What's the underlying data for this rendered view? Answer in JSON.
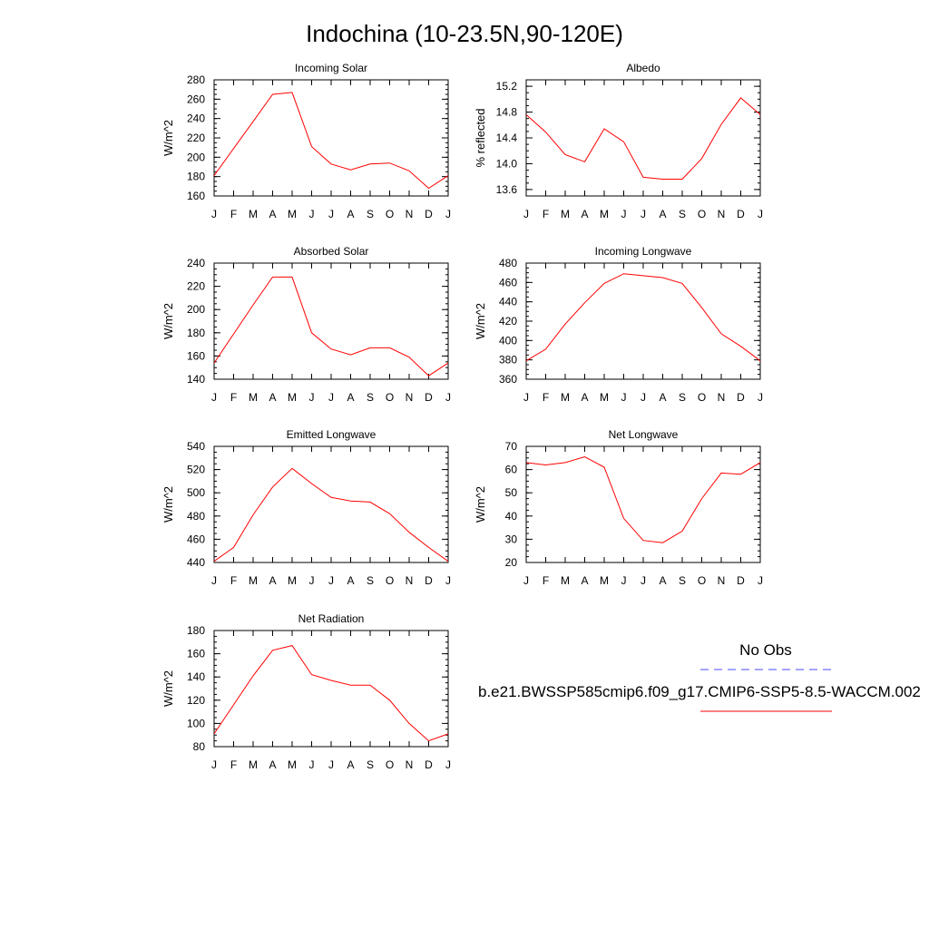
{
  "figure": {
    "title": "Indochina (10-23.5N,90-120E)",
    "month_labels": [
      "J",
      "F",
      "M",
      "A",
      "M",
      "J",
      "J",
      "A",
      "S",
      "O",
      "N",
      "D",
      "J"
    ]
  },
  "legend": {
    "obs_label": "No Obs",
    "obs_color": "#4a4aff",
    "model_label": "b.e21.BWSSP585cmip6.f09_g17.CMIP6-SSP5-8.5-WACCM.002",
    "model_color": "#ff0000"
  },
  "chart_data": [
    {
      "type": "line",
      "title": "Incoming Solar",
      "ylabel": "W/m^2",
      "ylim": [
        160,
        280
      ],
      "yticks": [
        160,
        180,
        200,
        220,
        240,
        260,
        280
      ],
      "x": [
        "J",
        "F",
        "M",
        "A",
        "M",
        "J",
        "J",
        "A",
        "S",
        "O",
        "N",
        "D",
        "J"
      ],
      "series": [
        {
          "values": [
            181,
            209,
            237,
            265,
            267,
            211,
            193,
            187,
            193,
            194,
            186,
            168,
            181
          ]
        }
      ]
    },
    {
      "type": "line",
      "title": "Albedo",
      "ylabel": "% reflected",
      "ylim": [
        13.5,
        15.3
      ],
      "yticks": [
        13.6,
        14.0,
        14.4,
        14.8,
        15.2
      ],
      "ytick_labels": [
        "13.6",
        "14.0",
        "14.4",
        "14.8",
        "15.2"
      ],
      "x": [
        "J",
        "F",
        "M",
        "A",
        "M",
        "J",
        "J",
        "A",
        "S",
        "O",
        "N",
        "D",
        "J"
      ],
      "series": [
        {
          "values": [
            14.76,
            14.49,
            14.14,
            14.03,
            14.54,
            14.34,
            13.79,
            13.76,
            13.76,
            14.08,
            14.61,
            15.02,
            14.76
          ]
        }
      ]
    },
    {
      "type": "line",
      "title": "Absorbed Solar",
      "ylabel": "W/m^2",
      "ylim": [
        140,
        240
      ],
      "yticks": [
        140,
        160,
        180,
        200,
        220,
        240
      ],
      "x": [
        "J",
        "F",
        "M",
        "A",
        "M",
        "J",
        "J",
        "A",
        "S",
        "O",
        "N",
        "D",
        "J"
      ],
      "series": [
        {
          "values": [
            154,
            179,
            204,
            228,
            228,
            180,
            166,
            161,
            167,
            167,
            159,
            143,
            154
          ]
        }
      ]
    },
    {
      "type": "line",
      "title": "Incoming Longwave",
      "ylabel": "W/m^2",
      "ylim": [
        360,
        480
      ],
      "yticks": [
        360,
        380,
        400,
        420,
        440,
        460,
        480
      ],
      "x": [
        "J",
        "F",
        "M",
        "A",
        "M",
        "J",
        "J",
        "A",
        "S",
        "O",
        "N",
        "D",
        "J"
      ],
      "series": [
        {
          "values": [
            379,
            391,
            417,
            439,
            459,
            469,
            467,
            465,
            459,
            434,
            407,
            394,
            379
          ]
        }
      ]
    },
    {
      "type": "line",
      "title": "Emitted Longwave",
      "ylabel": "W/m^2",
      "ylim": [
        440,
        540
      ],
      "yticks": [
        440,
        460,
        480,
        500,
        520,
        540
      ],
      "x": [
        "J",
        "F",
        "M",
        "A",
        "M",
        "J",
        "J",
        "A",
        "S",
        "O",
        "N",
        "D",
        "J"
      ],
      "series": [
        {
          "values": [
            441,
            453,
            481,
            505,
            521,
            508,
            496,
            493,
            492,
            482,
            466,
            453,
            441
          ]
        }
      ]
    },
    {
      "type": "line",
      "title": "Net Longwave",
      "ylabel": "W/m^2",
      "ylim": [
        20,
        70
      ],
      "yticks": [
        20,
        30,
        40,
        50,
        60,
        70
      ],
      "x": [
        "J",
        "F",
        "M",
        "A",
        "M",
        "J",
        "J",
        "A",
        "S",
        "O",
        "N",
        "D",
        "J"
      ],
      "series": [
        {
          "values": [
            63,
            62,
            63,
            65.5,
            61,
            39,
            29.5,
            28.5,
            33.5,
            47.5,
            58.5,
            58,
            63
          ]
        }
      ]
    },
    {
      "type": "line",
      "title": "Net Radiation",
      "ylabel": "W/m^2",
      "ylim": [
        80,
        180
      ],
      "yticks": [
        80,
        100,
        120,
        140,
        160,
        180
      ],
      "x": [
        "J",
        "F",
        "M",
        "A",
        "M",
        "J",
        "J",
        "A",
        "S",
        "O",
        "N",
        "D",
        "J"
      ],
      "series": [
        {
          "values": [
            91,
            116,
            141,
            163,
            167,
            142,
            137,
            133,
            133,
            120,
            100,
            85,
            91
          ]
        }
      ]
    }
  ]
}
